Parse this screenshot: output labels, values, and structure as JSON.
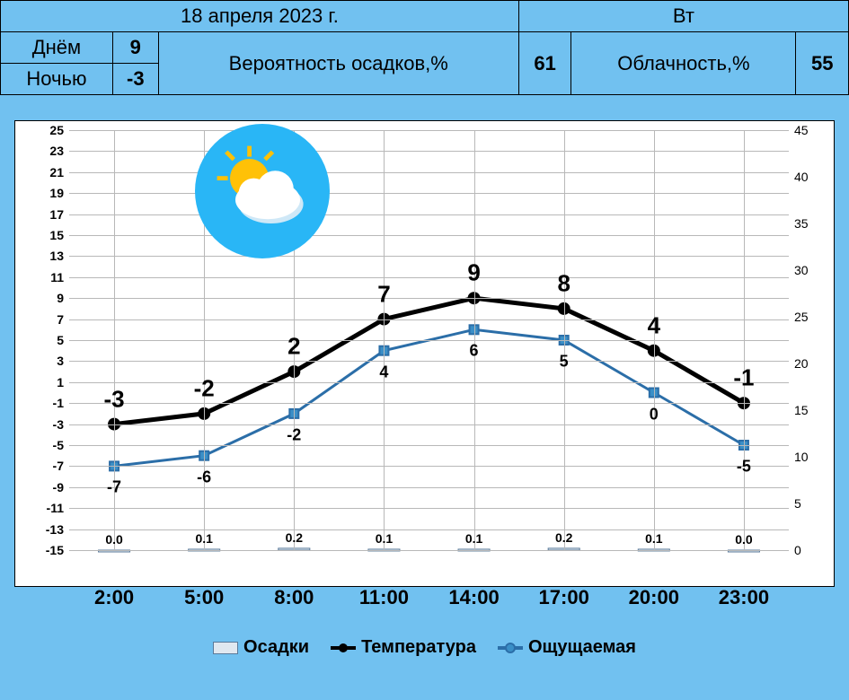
{
  "header": {
    "date": "18 апреля 2023 г.",
    "weekday": "Вт",
    "day_label": "Днём",
    "day_value": "9",
    "night_label": "Ночью",
    "night_value": "-3",
    "precip_prob_label": "Вероятность осадков,%",
    "precip_prob_value": "61",
    "cloud_label": "Облачность,%",
    "cloud_value": "55"
  },
  "chart": {
    "type": "combo-line-bar",
    "background_color": "#ffffff",
    "page_background": "#71c1f0",
    "grid_color": "#b8b8b8",
    "x_categories": [
      "2:00",
      "5:00",
      "8:00",
      "11:00",
      "14:00",
      "17:00",
      "20:00",
      "23:00"
    ],
    "left_axis": {
      "min": -15,
      "max": 25,
      "ticks": [
        -15,
        -13,
        -11,
        -9,
        -7,
        -5,
        -3,
        -1,
        1,
        3,
        5,
        7,
        9,
        11,
        13,
        15,
        17,
        19,
        21,
        23,
        25
      ]
    },
    "right_axis": {
      "min": 0,
      "max": 45,
      "ticks": [
        0,
        5,
        10,
        15,
        20,
        25,
        30,
        35,
        40,
        45
      ]
    },
    "series": {
      "temperature": {
        "label": "Температура",
        "color": "#000000",
        "line_width": 5,
        "marker": "circle",
        "marker_size": 7,
        "values": [
          -3,
          -2,
          2,
          7,
          9,
          8,
          4,
          -1
        ],
        "labels": [
          "-3",
          "-2",
          "2",
          "7",
          "9",
          "8",
          "4",
          "-1"
        ]
      },
      "feels": {
        "label": "Ощущаемая",
        "color": "#2b6ea8",
        "marker_fill": "#3a8fc7",
        "line_width": 3,
        "marker": "square",
        "marker_size": 8,
        "values": [
          -7,
          -6,
          -2,
          4,
          6,
          5,
          0,
          -5
        ],
        "labels": [
          "-7",
          "-6",
          "-2",
          "4",
          "6",
          "5",
          "0",
          "-5"
        ]
      },
      "precip": {
        "label": "Осадки",
        "bar_fill": "#e0e8f0",
        "bar_stroke": "#5a7a9a",
        "bar_width_ratio": 0.35,
        "values": [
          0.0,
          0.1,
          0.2,
          0.1,
          0.1,
          0.2,
          0.1,
          0.0
        ],
        "labels": [
          "0.0",
          "0.1",
          "0.2",
          "0.1",
          "0.1",
          "0.2",
          "0.1",
          "0.0"
        ]
      }
    },
    "weather_icon": {
      "type": "partly-cloudy",
      "bg": "#29b6f6",
      "sun": "#ffc107",
      "cloud": "#ffffff",
      "cloud_shadow": "#cfe8f7"
    },
    "legend": {
      "precip": "Осадки",
      "temp": "Температура",
      "feels": "Ощущаемая"
    },
    "fonts": {
      "axis": 14,
      "xaxis": 22,
      "temp_label": 26,
      "feel_label": 18,
      "precip_label": 14
    }
  }
}
